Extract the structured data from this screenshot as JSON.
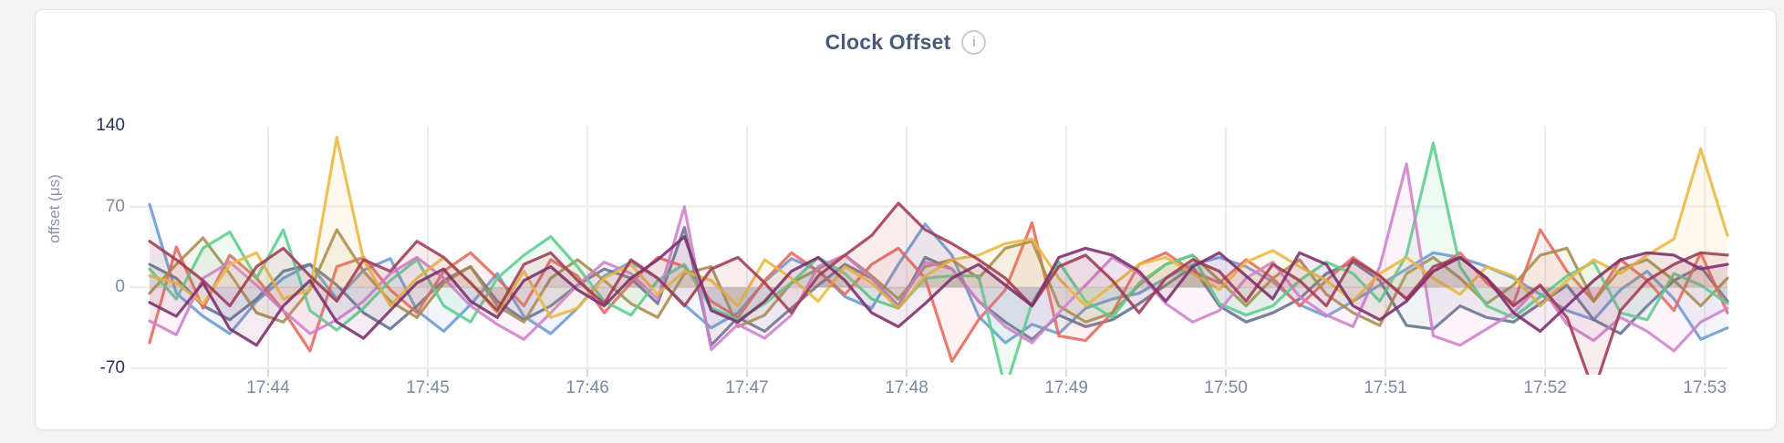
{
  "header": {
    "title": "Clock Offset",
    "info_icon_glyph": "i"
  },
  "colors": {
    "page_bg": "#f4f4f5",
    "panel_bg": "#ffffff",
    "panel_border": "#e2e3e5",
    "grid": "#ececec",
    "tick_mark": "#d8d8d8",
    "dash": "#e0e0e0",
    "tick_label": "#7d89a3",
    "tick_label_emphasis": "#27325a",
    "title_color": "#4a5b77",
    "axis_title_color": "#8a93a8",
    "info_border": "#c9cbce",
    "info_color": "#a9adb3"
  },
  "chart_data": {
    "type": "line",
    "title": "Clock Offset",
    "xlabel": "",
    "ylabel": "offset (μs)",
    "ylim": [
      -70,
      140
    ],
    "baseline": 0,
    "grid": true,
    "legend_position": "none",
    "area_fill_opacity": 0.09,
    "line_width": 3.2,
    "y_ticks": [
      {
        "value": 140,
        "label": "140",
        "emphasis": true,
        "gridline": false
      },
      {
        "value": 70,
        "label": "70",
        "emphasis": false,
        "gridline": true
      },
      {
        "value": 0,
        "label": "0",
        "emphasis": false,
        "gridline": true
      },
      {
        "value": -70,
        "label": "-70",
        "emphasis": true,
        "gridline": true
      }
    ],
    "x_ticks": [
      {
        "label": "17:44",
        "f": 0.0751
      },
      {
        "label": "17:45",
        "f": 0.1763
      },
      {
        "label": "17:46",
        "f": 0.2775
      },
      {
        "label": "17:47",
        "f": 0.3786
      },
      {
        "label": "17:48",
        "f": 0.4798
      },
      {
        "label": "17:49",
        "f": 0.581
      },
      {
        "label": "17:50",
        "f": 0.6821
      },
      {
        "label": "17:51",
        "f": 0.7833
      },
      {
        "label": "17:52",
        "f": 0.8845
      },
      {
        "label": "17:53",
        "f": 0.9857
      }
    ],
    "series": [
      {
        "name": "series-blue",
        "color": "#6c9bd3",
        "values": [
          72,
          -5,
          -25,
          -40,
          -12,
          8,
          20,
          -10,
          15,
          25,
          -20,
          -38,
          -15,
          12,
          -25,
          -40,
          -18,
          10,
          22,
          8,
          -15,
          -35,
          -22,
          5,
          25,
          15,
          -8,
          -18,
          20,
          55,
          28,
          -25,
          -48,
          -32,
          -40,
          -18,
          -10,
          -5,
          8,
          20,
          26,
          18,
          5,
          -15,
          -25,
          -12,
          2,
          16,
          30,
          26,
          18,
          8,
          -6,
          -20,
          -28,
          -2,
          14,
          -10,
          -45,
          -35
        ]
      },
      {
        "name": "series-slate",
        "color": "#64718e",
        "values": [
          20,
          8,
          -16,
          -28,
          -10,
          14,
          20,
          2,
          -22,
          -36,
          -16,
          6,
          18,
          -12,
          -28,
          -16,
          2,
          16,
          8,
          -14,
          52,
          -50,
          -26,
          -38,
          -18,
          2,
          20,
          8,
          -16,
          26,
          16,
          -12,
          -30,
          -45,
          -24,
          -34,
          -28,
          -14,
          2,
          18,
          -16,
          -30,
          -22,
          -10,
          12,
          22,
          6,
          -33,
          -36,
          -16,
          -26,
          -30,
          -14,
          2,
          -28,
          -40,
          -16,
          6,
          18,
          -12
        ]
      },
      {
        "name": "series-salmon",
        "color": "#e5695f",
        "values": [
          -48,
          35,
          -18,
          28,
          8,
          -20,
          -55,
          18,
          26,
          -2,
          -22,
          14,
          30,
          8,
          -16,
          24,
          10,
          -22,
          4,
          26,
          18,
          -12,
          -26,
          6,
          30,
          14,
          -6,
          20,
          34,
          8,
          -64,
          -28,
          -2,
          56,
          -42,
          -46,
          -22,
          20,
          30,
          14,
          4,
          24,
          8,
          -16,
          6,
          26,
          10,
          -10,
          14,
          30,
          4,
          -14,
          50,
          14,
          -12,
          24,
          6,
          -20,
          30,
          -22
        ]
      },
      {
        "name": "series-khaki",
        "color": "#a68c4c",
        "values": [
          -5,
          20,
          43,
          12,
          -22,
          -30,
          -2,
          50,
          14,
          -12,
          -26,
          4,
          18,
          -16,
          -30,
          8,
          24,
          6,
          -14,
          -26,
          12,
          18,
          -34,
          -24,
          4,
          16,
          28,
          10,
          -10,
          18,
          24,
          8,
          34,
          40,
          -16,
          -30,
          -22,
          2,
          20,
          28,
          6,
          -16,
          8,
          24,
          -6,
          -22,
          -33,
          12,
          26,
          8,
          -14,
          2,
          28,
          34,
          -12,
          16,
          24,
          6,
          -16,
          8
        ]
      },
      {
        "name": "series-green",
        "color": "#5ccd8d",
        "values": [
          16,
          -10,
          34,
          48,
          8,
          50,
          -20,
          -37,
          -18,
          6,
          24,
          -16,
          -30,
          8,
          28,
          44,
          18,
          -12,
          -24,
          6,
          20,
          -18,
          -28,
          -14,
          4,
          26,
          12,
          -10,
          -18,
          8,
          10,
          10,
          -88,
          -13,
          22,
          -12,
          -26,
          4,
          20,
          28,
          -14,
          -24,
          -16,
          6,
          22,
          12,
          -12,
          28,
          125,
          18,
          -16,
          -26,
          -8,
          10,
          22,
          -22,
          -28,
          12,
          2,
          -14
        ]
      },
      {
        "name": "series-orchid",
        "color": "#ce82ca",
        "values": [
          -29,
          -41,
          8,
          22,
          2,
          -20,
          -40,
          -28,
          -12,
          12,
          26,
          8,
          -16,
          -32,
          -45,
          -22,
          2,
          22,
          12,
          -10,
          70,
          -54,
          -32,
          -44,
          -24,
          18,
          28,
          8,
          -16,
          22,
          16,
          -12,
          -34,
          -48,
          -22,
          2,
          26,
          12,
          -14,
          -30,
          -20,
          8,
          22,
          -8,
          -24,
          -34,
          18,
          107,
          -42,
          -50,
          -36,
          -22,
          2,
          -32,
          -46,
          -26,
          -38,
          -55,
          -30,
          -18
        ]
      },
      {
        "name": "series-gold",
        "color": "#e8b842",
        "values": [
          10,
          4,
          -14,
          20,
          30,
          -10,
          -2,
          130,
          24,
          -16,
          8,
          26,
          4,
          -22,
          14,
          -26,
          -18,
          8,
          20,
          -6,
          14,
          6,
          -16,
          24,
          8,
          -12,
          18,
          4,
          -18,
          10,
          24,
          28,
          38,
          42,
          8,
          -16,
          2,
          20,
          26,
          12,
          -2,
          22,
          32,
          18,
          6,
          -12,
          12,
          26,
          8,
          -6,
          18,
          10,
          -16,
          6,
          24,
          12,
          28,
          42,
          120,
          45
        ]
      },
      {
        "name": "series-maroon",
        "color": "#a23b52",
        "values": [
          40,
          24,
          6,
          -16,
          18,
          34,
          10,
          -12,
          24,
          14,
          40,
          26,
          4,
          -20,
          20,
          30,
          6,
          -14,
          24,
          8,
          -16,
          16,
          26,
          4,
          -22,
          10,
          28,
          45,
          73,
          50,
          38,
          24,
          8,
          -16,
          18,
          28,
          6,
          -22,
          8,
          24,
          14,
          -12,
          20,
          6,
          -16,
          24,
          10,
          -10,
          18,
          26,
          8,
          -16,
          2,
          -26,
          -90,
          -20,
          6,
          20,
          30,
          28
        ]
      },
      {
        "name": "series-magenta",
        "color": "#7c2e6b",
        "values": [
          -13,
          -25,
          4,
          -36,
          -50,
          -16,
          6,
          -30,
          -44,
          -20,
          4,
          16,
          -12,
          -26,
          6,
          18,
          -2,
          -16,
          8,
          24,
          44,
          -20,
          -30,
          -12,
          14,
          26,
          6,
          -22,
          -34,
          -14,
          8,
          20,
          2,
          -16,
          26,
          34,
          28,
          14,
          -12,
          18,
          30,
          10,
          -10,
          30,
          20,
          -16,
          -28,
          -12,
          14,
          26,
          8,
          -22,
          -38,
          -16,
          6,
          24,
          30,
          28,
          16,
          20
        ]
      }
    ]
  }
}
